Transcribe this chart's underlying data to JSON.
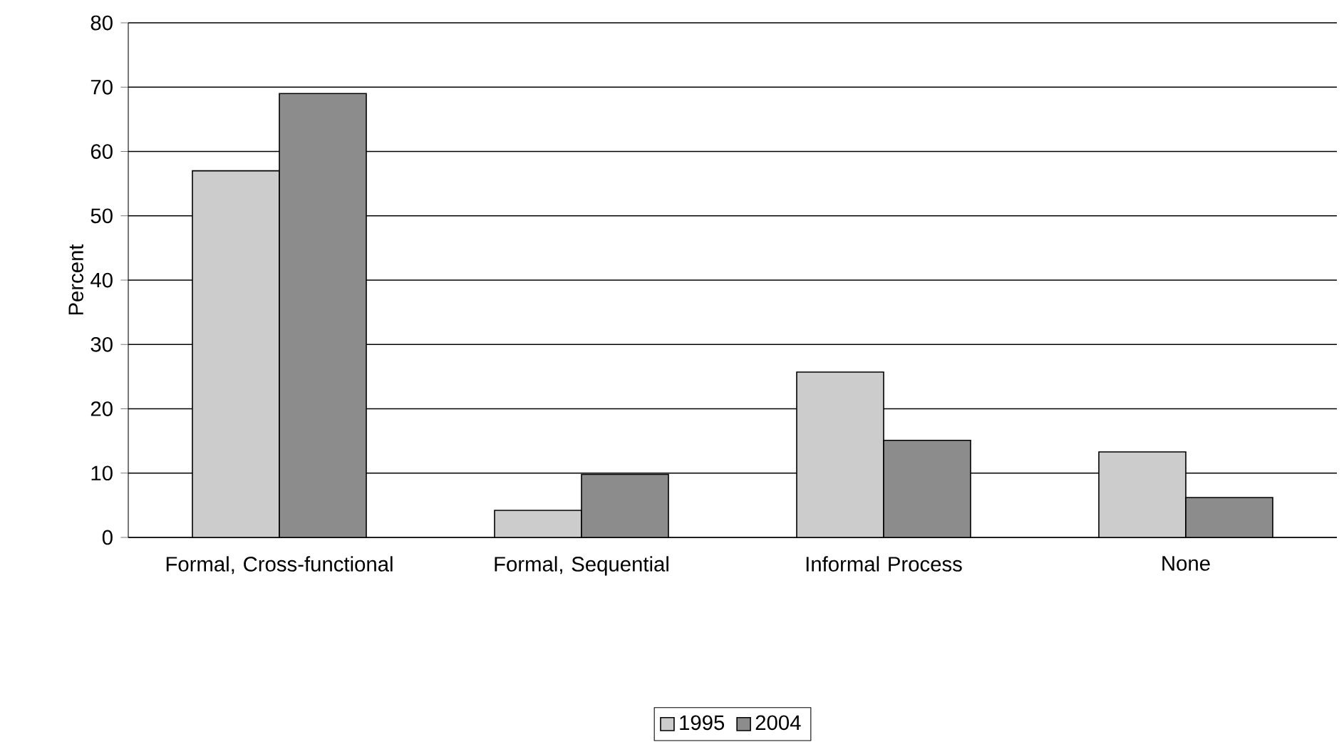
{
  "chart_data": {
    "type": "bar",
    "ylabel": "Percent",
    "categories": [
      "Formal, Cross-functional",
      "Formal, Sequential",
      "Informal Process",
      "None"
    ],
    "series": [
      {
        "name": "1995",
        "color": "#cccccc",
        "values": [
          57,
          4.2,
          25.7,
          13.3
        ]
      },
      {
        "name": "2004",
        "color": "#8c8c8c",
        "values": [
          69,
          9.8,
          15.1,
          6.2
        ]
      }
    ],
    "ylim": [
      0,
      80
    ],
    "yticks": [
      0,
      10,
      20,
      30,
      40,
      50,
      60,
      70,
      80
    ],
    "grid": "y",
    "legend": "bottom"
  }
}
